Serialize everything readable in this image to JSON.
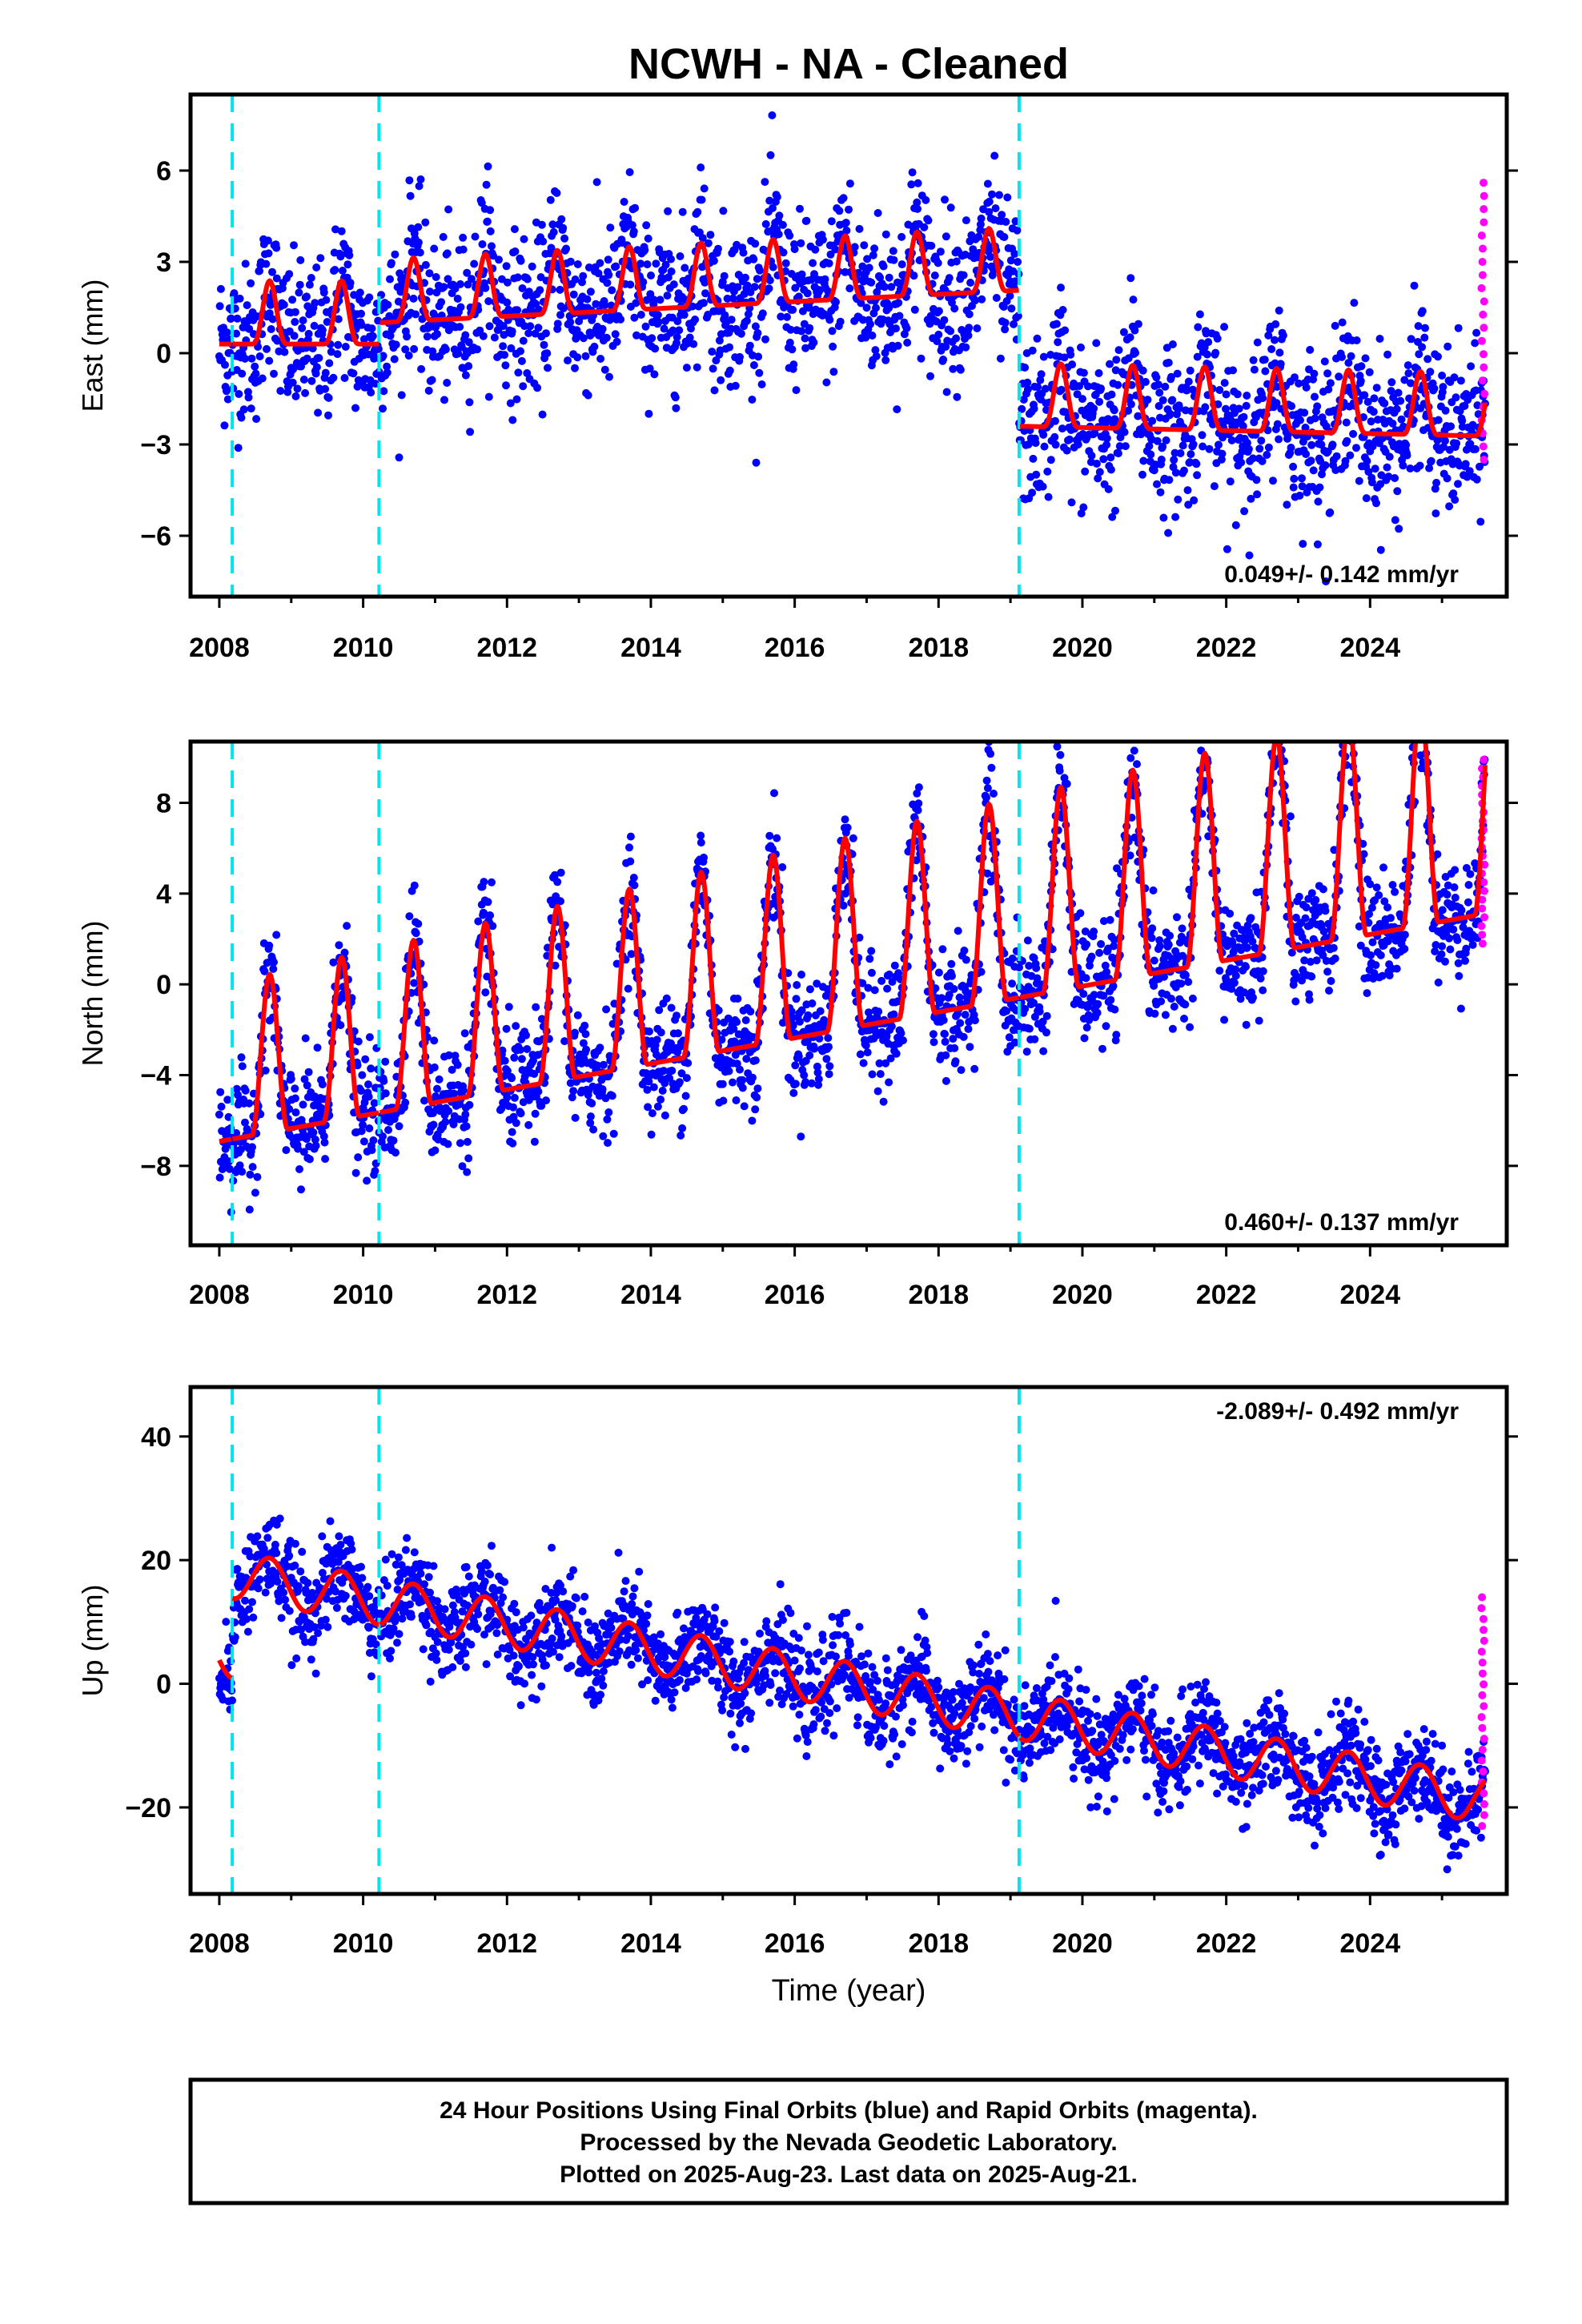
{
  "title": "NCWH  - NA - Cleaned",
  "xlabel": "Time (year)",
  "footer": {
    "line1": "24 Hour Positions Using Final Orbits (blue) and Rapid Orbits (magenta).",
    "line2": "Processed by the Nevada Geodetic Laboratory.",
    "line3": "Plotted on 2025-Aug-23. Last data on 2025-Aug-21."
  },
  "colors": {
    "final_points": "#0000ff",
    "rapid_points": "#ff00ff",
    "model": "#ff0000",
    "steps": "#00e5ee",
    "frame": "#000000"
  },
  "chart_data": [
    {
      "type": "scatter",
      "ylabel": "East (mm)",
      "rate": "0.049+/- 0.142 mm/yr",
      "xlim": [
        2007.6,
        2025.9
      ],
      "ylim": [
        -8,
        8.5
      ],
      "xticks": [
        2008,
        2010,
        2012,
        2014,
        2016,
        2018,
        2020,
        2022,
        2024
      ],
      "yticks": [
        -6,
        -3,
        0,
        3,
        6
      ],
      "steps": [
        2008.18,
        2010.22,
        2019.12
      ],
      "model": {
        "x_start": 2008.0,
        "x_end": 2025.6,
        "offset_pre": 0.5,
        "offset_mid": 1.2,
        "offset_post": -2.2,
        "trend": 0.049,
        "annual_amp": 1.3,
        "noise": 1.3
      },
      "rapid": {
        "x": 2025.57,
        "y_range": [
          -3.5,
          5.6
        ]
      }
    },
    {
      "type": "scatter",
      "ylabel": "North (mm)",
      "rate": "0.460+/- 0.137 mm/yr",
      "xlim": [
        2007.6,
        2025.9
      ],
      "ylim": [
        -11.5,
        10.7
      ],
      "xticks": [
        2008,
        2010,
        2012,
        2014,
        2016,
        2018,
        2020,
        2022,
        2024
      ],
      "yticks": [
        -8,
        -4,
        0,
        4,
        8
      ],
      "steps": [
        2008.18,
        2010.22,
        2019.12
      ],
      "model": {
        "x_start": 2008.0,
        "x_end": 2025.6,
        "base": -3.0,
        "trend": 0.46,
        "annual_amp": 3.8,
        "noise": 1.3
      },
      "rapid": {
        "x": 2025.57,
        "y_range": [
          1.8,
          9.9
        ]
      }
    },
    {
      "type": "scatter",
      "ylabel": "Up (mm)",
      "rate": "-2.089+/- 0.492 mm/yr",
      "xlim": [
        2007.6,
        2025.9
      ],
      "ylim": [
        -34,
        48
      ],
      "xticks": [
        2008,
        2010,
        2012,
        2014,
        2016,
        2018,
        2020,
        2022,
        2024
      ],
      "yticks": [
        -20,
        0,
        20,
        40
      ],
      "steps": [
        2008.18,
        2010.22,
        2019.12
      ],
      "model": {
        "x_start": 2008.0,
        "x_end": 2025.6,
        "base": 18.0,
        "trend": -2.089,
        "annual_amp": 3.8,
        "noise": 3.8
      },
      "rapid": {
        "x": 2025.57,
        "y_range": [
          -23,
          14
        ]
      }
    }
  ]
}
